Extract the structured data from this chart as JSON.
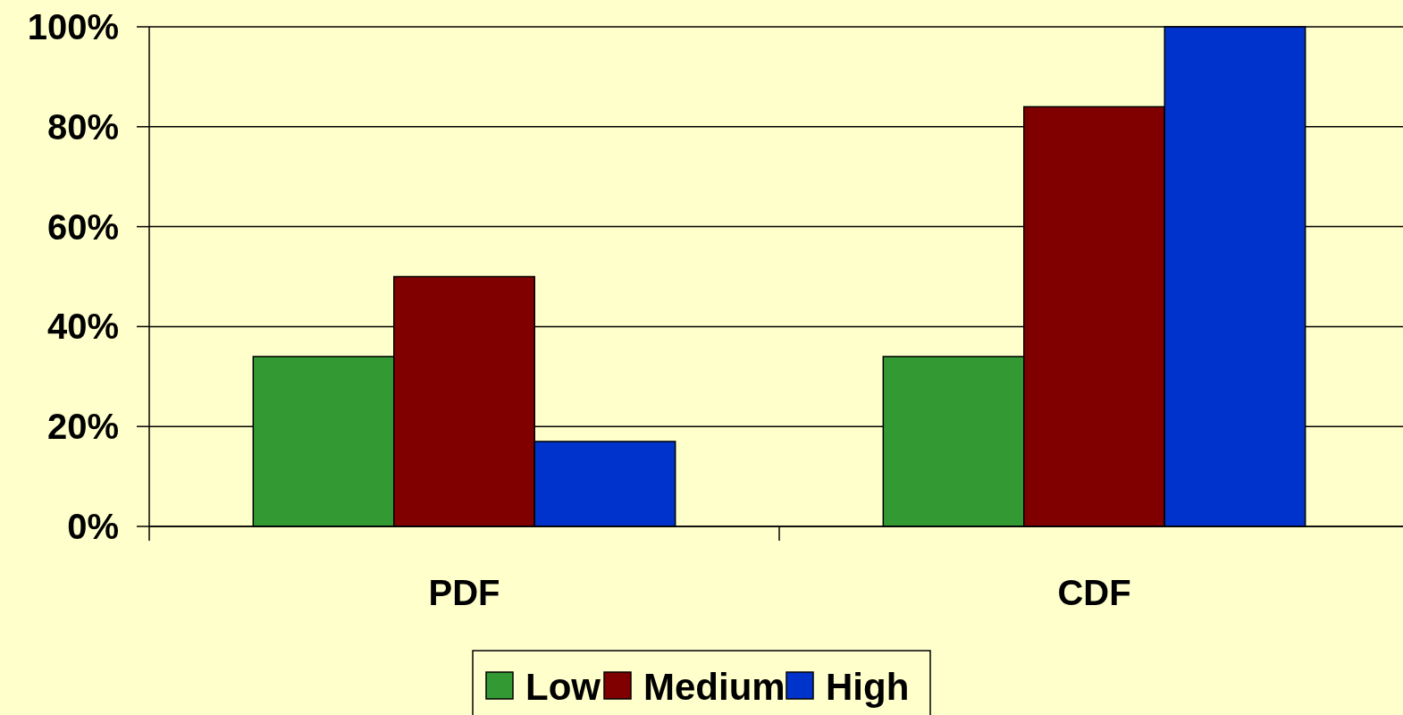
{
  "chart_data": {
    "type": "bar",
    "categories": [
      "PDF",
      "CDF"
    ],
    "series": [
      {
        "name": "Low",
        "color": "#339933",
        "values": [
          34,
          34
        ]
      },
      {
        "name": "Medium",
        "color": "#800000",
        "values": [
          50,
          84
        ]
      },
      {
        "name": "High",
        "color": "#0033cc",
        "values": [
          17,
          100
        ]
      }
    ],
    "ylim": [
      0,
      100
    ],
    "yticks": [
      {
        "value": 0,
        "label": "0%"
      },
      {
        "value": 20,
        "label": "20%"
      },
      {
        "value": 40,
        "label": "40%"
      },
      {
        "value": 60,
        "label": "60%"
      },
      {
        "value": 80,
        "label": "80%"
      },
      {
        "value": 100,
        "label": "100%"
      }
    ],
    "grid": "y",
    "legend": "bottom"
  }
}
